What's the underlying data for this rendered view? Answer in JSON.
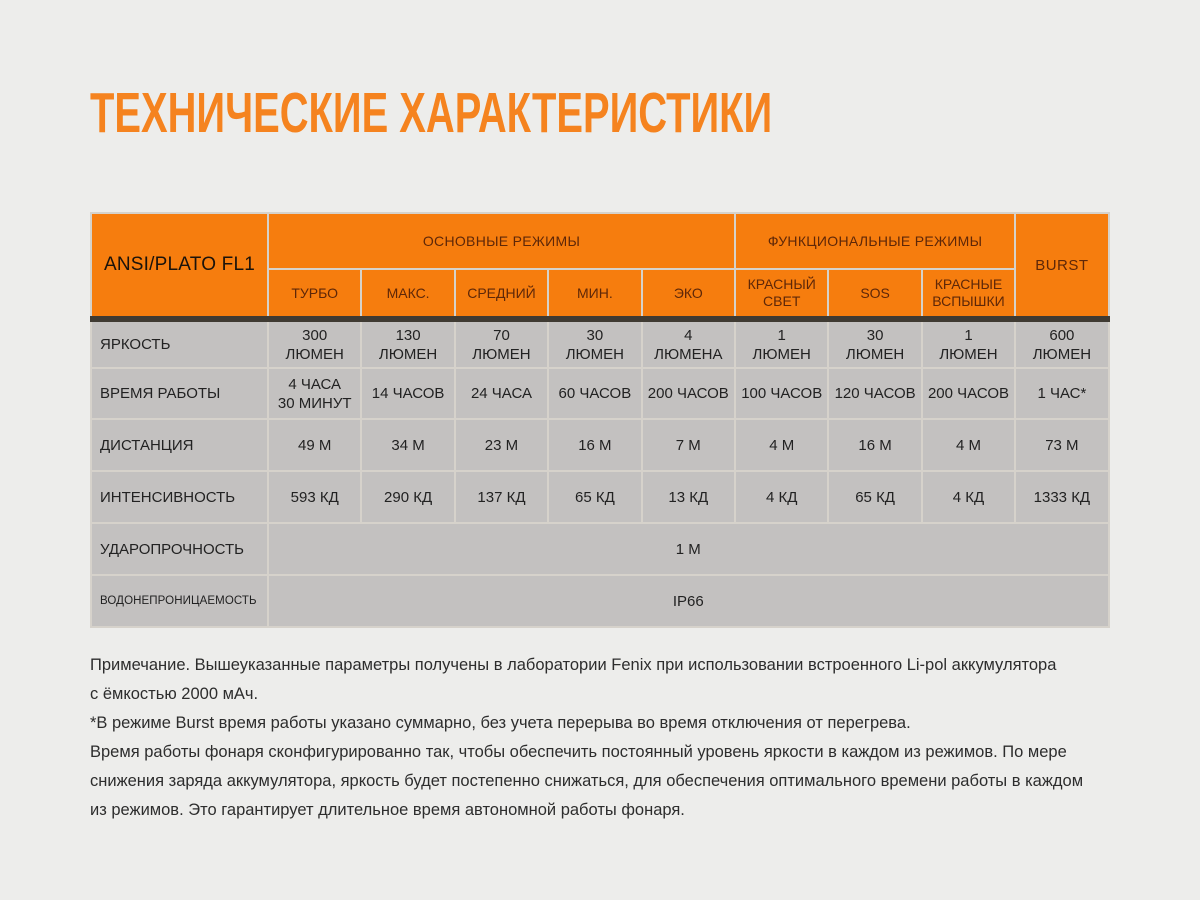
{
  "page": {
    "title": "ТЕХНИЧЕСКИЕ ХАРАКТЕРИСТИКИ"
  },
  "colors": {
    "title_orange": "#f5831f",
    "header_orange": "#f67d0e",
    "header_text_brown": "#5e2708",
    "cell_gray": "#c3c1c0",
    "dark_divider": "#3f3a32",
    "page_background": "#ededeb"
  },
  "table": {
    "corner_label": "ANSI/PLATO FL1",
    "groups": [
      {
        "label": "ОСНОВНЫЕ РЕЖИМЫ",
        "span": 5
      },
      {
        "label": "ФУНКЦИОНАЛЬНЫЕ РЕЖИМЫ",
        "span": 3
      }
    ],
    "burst_label": "BURST",
    "mode_headers": [
      "ТУРБО",
      "МАКС.",
      "СРЕДНИЙ",
      "МИН.",
      "ЭКО",
      "КРАСНЫЙ\nСВЕТ",
      "SOS",
      "КРАСНЫЕ\nВСПЫШКИ"
    ],
    "rows": [
      {
        "label": "ЯРКОСТЬ",
        "values": [
          "300\nЛЮМЕН",
          "130\nЛЮМЕН",
          "70\nЛЮМЕН",
          "30\nЛЮМЕН",
          "4\nЛЮМЕНА",
          "1\nЛЮМЕН",
          "30\nЛЮМЕН",
          "1\nЛЮМЕН",
          "600\nЛЮМЕН"
        ]
      },
      {
        "label": "ВРЕМЯ РАБОТЫ",
        "values": [
          "4 ЧАСА\n30 МИНУТ",
          "14 ЧАСОВ",
          "24 ЧАСА",
          "60 ЧАСОВ",
          "200 ЧАСОВ",
          "100 ЧАСОВ",
          "120 ЧАСОВ",
          "200 ЧАСОВ",
          "1 ЧАС*"
        ]
      },
      {
        "label": "ДИСТАНЦИЯ",
        "values": [
          "49 М",
          "34 М",
          "23 М",
          "16 М",
          "7 М",
          "4 М",
          "16 М",
          "4 М",
          "73 М"
        ]
      },
      {
        "label": "ИНТЕНСИВНОСТЬ",
        "values": [
          "593 КД",
          "290 КД",
          "137 КД",
          "65 КД",
          "13 КД",
          "4 КД",
          "65 КД",
          "4 КД",
          "1333 КД"
        ]
      }
    ],
    "impact": {
      "label": "УДАРОПРОЧНОСТЬ",
      "value": "1 М"
    },
    "waterproof": {
      "label": "ВОДОНЕПРОНИЦАЕМОСТЬ",
      "value": "IP66"
    }
  },
  "notes": {
    "lines": [
      "Примечание. Вышеуказанные параметры получены в лаборатории Fenix при использовании встроенного Li-pol аккумулятора",
      "с ёмкостью 2000 мАч.",
      "*В режиме Burst время работы указано суммарно, без учета перерыва во время отключения от перегрева.",
      "Время работы фонаря сконфигурированно так, чтобы обеспечить постоянный уровень яркости в каждом из режимов. По мере",
      "снижения заряда аккумулятора, яркость будет постепенно снижаться, для обеспечения оптимального времени работы в каждом",
      "из режимов. Это гарантирует длительное время автономной работы фонаря."
    ]
  }
}
